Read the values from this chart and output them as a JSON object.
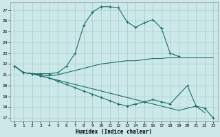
{
  "title": "",
  "xlabel": "Humidex (Indice chaleur)",
  "bg_color": "#cce8e8",
  "grid_color": "#aacfcf",
  "line_color": "#1a6b6b",
  "xlim": [
    -0.5,
    23.5
  ],
  "ylim": [
    16.7,
    27.7
  ],
  "yticks": [
    17,
    18,
    19,
    20,
    21,
    22,
    23,
    24,
    25,
    26,
    27
  ],
  "xticks": [
    0,
    1,
    2,
    3,
    4,
    5,
    6,
    7,
    8,
    9,
    10,
    11,
    12,
    13,
    14,
    15,
    16,
    17,
    18,
    19,
    20,
    21,
    22,
    23
  ],
  "series": [
    {
      "x": [
        0,
        1,
        2,
        3,
        4,
        5,
        6,
        7,
        8,
        9,
        10,
        11,
        12,
        13,
        14,
        15,
        16,
        17,
        18,
        19
      ],
      "y": [
        21.8,
        21.2,
        21.1,
        21.1,
        21.1,
        21.2,
        21.8,
        23.0,
        25.6,
        26.8,
        27.3,
        27.3,
        27.2,
        25.9,
        25.4,
        25.8,
        26.1,
        25.3,
        23.0,
        22.7
      ],
      "marker": true
    },
    {
      "x": [
        0,
        1,
        2,
        3,
        4,
        5,
        6,
        7,
        8,
        9,
        10,
        11,
        12,
        13,
        14,
        15,
        16,
        17,
        18,
        19,
        20,
        21,
        22,
        23
      ],
      "y": [
        21.8,
        21.2,
        21.1,
        21.0,
        20.9,
        21.0,
        21.2,
        21.4,
        21.6,
        21.8,
        22.0,
        22.1,
        22.2,
        22.3,
        22.3,
        22.4,
        22.5,
        22.5,
        22.6,
        22.6,
        22.6,
        22.6,
        22.6,
        22.6
      ],
      "marker": false
    },
    {
      "x": [
        0,
        1,
        2,
        3,
        4,
        5,
        6,
        7,
        8,
        9,
        10,
        11,
        12,
        13,
        14,
        15,
        16,
        17,
        18,
        19,
        20,
        21,
        22
      ],
      "y": [
        21.8,
        21.2,
        21.1,
        20.9,
        20.7,
        20.5,
        20.3,
        20.1,
        19.9,
        19.7,
        19.5,
        19.3,
        19.1,
        18.9,
        18.7,
        18.5,
        18.3,
        18.1,
        17.9,
        17.7,
        17.9,
        18.1,
        17.5
      ],
      "marker": false
    },
    {
      "x": [
        0,
        1,
        2,
        3,
        4,
        5,
        6,
        7,
        8,
        9,
        10,
        11,
        12,
        13,
        14,
        15,
        16,
        17,
        18,
        20,
        21,
        22,
        23
      ],
      "y": [
        21.8,
        21.2,
        21.1,
        20.9,
        20.7,
        20.4,
        20.1,
        19.8,
        19.5,
        19.2,
        18.9,
        18.6,
        18.3,
        18.1,
        18.3,
        18.5,
        18.7,
        18.5,
        18.3,
        20.0,
        18.1,
        17.9,
        17.0
      ],
      "marker": true
    }
  ]
}
